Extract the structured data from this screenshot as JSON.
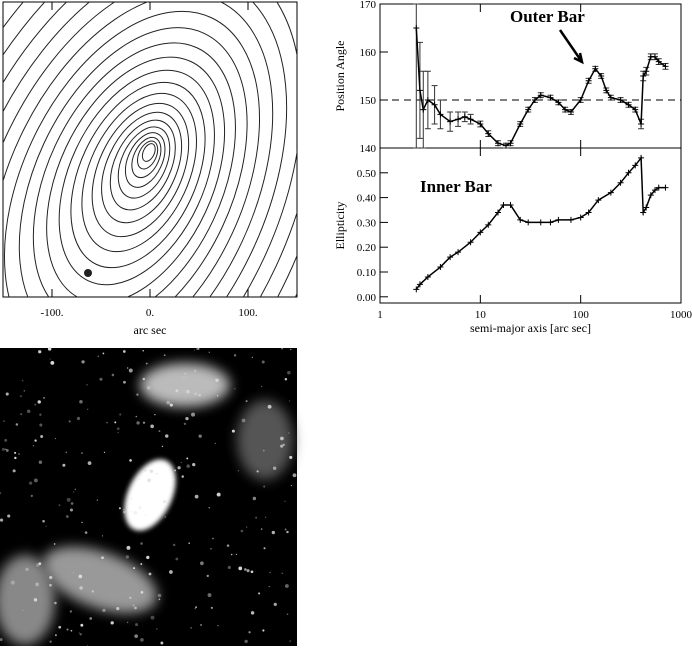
{
  "chart_data": [
    {
      "type": "contour",
      "xlabel": "arc sec",
      "xlim": [
        -150,
        150
      ],
      "xticks": [
        {
          "value": -100,
          "label": "-100."
        },
        {
          "value": 0,
          "label": "0."
        },
        {
          "value": 100,
          "label": "100."
        }
      ]
    },
    {
      "type": "errorbar",
      "ylabel": "Position Angle",
      "annotation": "Outer Bar",
      "hline": 150,
      "log_x": true,
      "xlim": [
        1,
        1000
      ],
      "ylim": [
        140,
        170
      ],
      "yticks": [
        140,
        150,
        160,
        170
      ],
      "x": [
        2.3,
        2.5,
        2.7,
        3,
        3.5,
        4,
        5,
        6,
        7,
        8,
        10,
        12,
        15,
        18,
        20,
        25,
        30,
        35,
        40,
        50,
        60,
        70,
        80,
        100,
        120,
        140,
        160,
        180,
        200,
        250,
        300,
        350,
        400,
        420,
        450,
        500,
        550,
        600,
        700
      ],
      "values": [
        165,
        152,
        148,
        150,
        149,
        147,
        145.5,
        146,
        146.5,
        146,
        145,
        143,
        141,
        140.5,
        141,
        145,
        148,
        150,
        151,
        150.5,
        149.5,
        148,
        147.5,
        150,
        154,
        156.5,
        155,
        152,
        150.5,
        150,
        149,
        148,
        145,
        155,
        156,
        159,
        159,
        158,
        157
      ],
      "errors": [
        25,
        10,
        8,
        6,
        4,
        3,
        2,
        1.5,
        1,
        1,
        0.6,
        0.6,
        0.5,
        0.5,
        0.5,
        0.5,
        0.5,
        0.5,
        0.5,
        0.5,
        0.5,
        0.5,
        0.5,
        0.5,
        0.5,
        0.5,
        0.5,
        0.5,
        0.5,
        0.5,
        0.5,
        0.5,
        1,
        1,
        0.8,
        0.6,
        0.6,
        0.6,
        0.6
      ]
    },
    {
      "type": "errorbar",
      "ylabel": "Ellipticity",
      "xlabel": "semi-major axis [arc sec]",
      "annotation": "Inner Bar",
      "log_x": true,
      "xlim": [
        1,
        1000
      ],
      "ylim": [
        -0.025,
        0.6
      ],
      "xticks": [
        1,
        10,
        100,
        1000
      ],
      "yticks": [
        {
          "value": 0,
          "label": "0.00"
        },
        {
          "value": 0.1,
          "label": "0.10"
        },
        {
          "value": 0.2,
          "label": "0.20"
        },
        {
          "value": 0.3,
          "label": "0.30"
        },
        {
          "value": 0.4,
          "label": "0.40"
        },
        {
          "value": 0.5,
          "label": "0.50"
        }
      ],
      "x": [
        2.3,
        2.5,
        3,
        4,
        5,
        6,
        8,
        10,
        12,
        15,
        17,
        20,
        25,
        30,
        40,
        50,
        60,
        80,
        100,
        120,
        150,
        200,
        250,
        300,
        350,
        400,
        420,
        450,
        500,
        550,
        600,
        700
      ],
      "values": [
        0.03,
        0.05,
        0.08,
        0.12,
        0.16,
        0.18,
        0.22,
        0.26,
        0.29,
        0.34,
        0.37,
        0.37,
        0.31,
        0.3,
        0.3,
        0.3,
        0.31,
        0.31,
        0.32,
        0.34,
        0.39,
        0.42,
        0.46,
        0.5,
        0.53,
        0.56,
        0.34,
        0.36,
        0.41,
        0.43,
        0.44,
        0.44
      ]
    }
  ]
}
